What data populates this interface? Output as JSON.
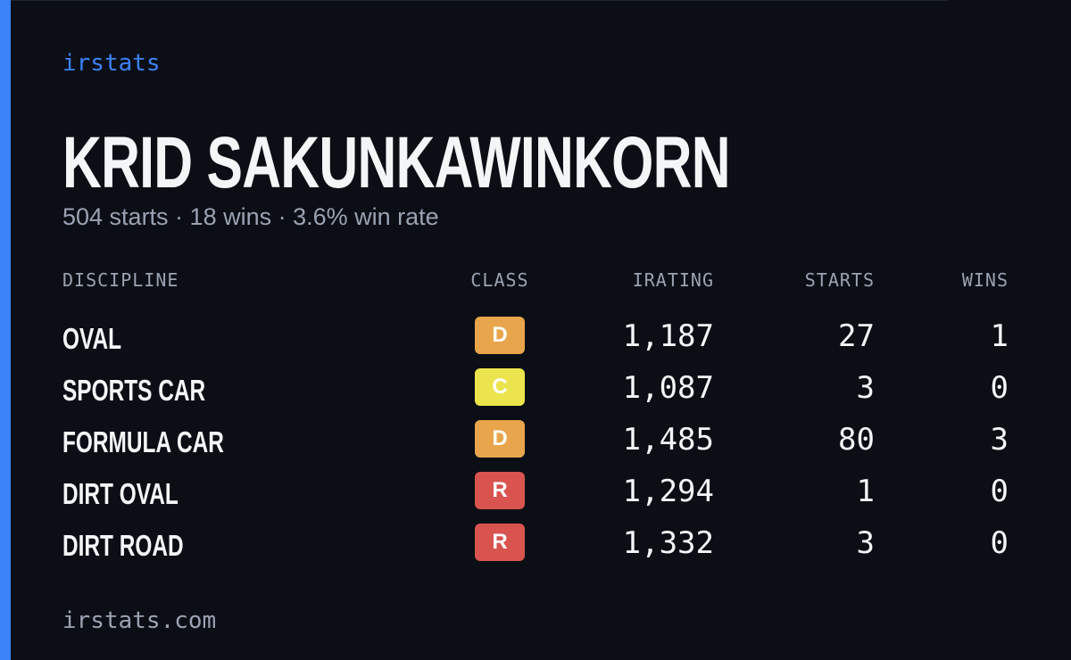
{
  "brand": "irstats",
  "title": "KRID SAKUNKAWINKORN",
  "summary": "504 starts · 18 wins · 3.6% win rate",
  "table": {
    "columns": [
      "DISCIPLINE",
      "CLASS",
      "IRATING",
      "STARTS",
      "WINS"
    ],
    "rows": [
      {
        "discipline": "OVAL",
        "class": "D",
        "class_color": "#e8a54b",
        "irating": "1,187",
        "starts": "27",
        "wins": "1"
      },
      {
        "discipline": "SPORTS CAR",
        "class": "C",
        "class_color": "#ece44c",
        "irating": "1,087",
        "starts": "3",
        "wins": "0"
      },
      {
        "discipline": "FORMULA CAR",
        "class": "D",
        "class_color": "#e8a54b",
        "irating": "1,485",
        "starts": "80",
        "wins": "3"
      },
      {
        "discipline": "DIRT OVAL",
        "class": "R",
        "class_color": "#d9534f",
        "irating": "1,294",
        "starts": "1",
        "wins": "0"
      },
      {
        "discipline": "DIRT ROAD",
        "class": "R",
        "class_color": "#d9534f",
        "irating": "1,332",
        "starts": "3",
        "wins": "0"
      }
    ]
  },
  "footer": "irstats.com"
}
